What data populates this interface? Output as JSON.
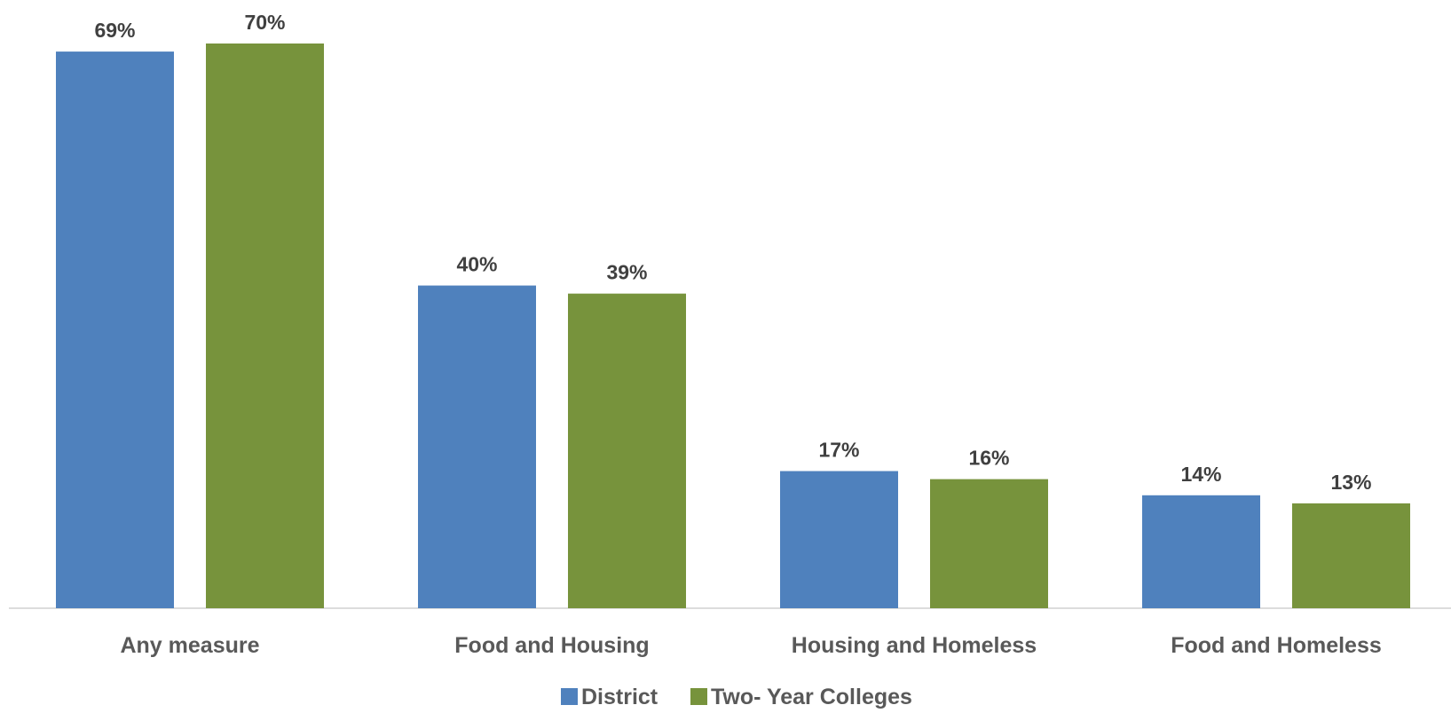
{
  "chart_data": {
    "type": "bar",
    "categories": [
      "Any measure",
      "Food and Housing",
      "Housing and Homeless",
      "Food and Homeless"
    ],
    "series": [
      {
        "name": "District",
        "values": [
          69,
          40,
          17,
          14
        ],
        "color": "#4F81BD",
        "labels": [
          "69%",
          "40%",
          "17%",
          "14%"
        ]
      },
      {
        "name": "Two- Year Colleges",
        "values": [
          70,
          39,
          16,
          13
        ],
        "color": "#77933C",
        "labels": [
          "70%",
          "39%",
          "16%",
          "13%"
        ]
      }
    ],
    "ylim": [
      0,
      70
    ],
    "grid": false,
    "legend": "bottom"
  }
}
